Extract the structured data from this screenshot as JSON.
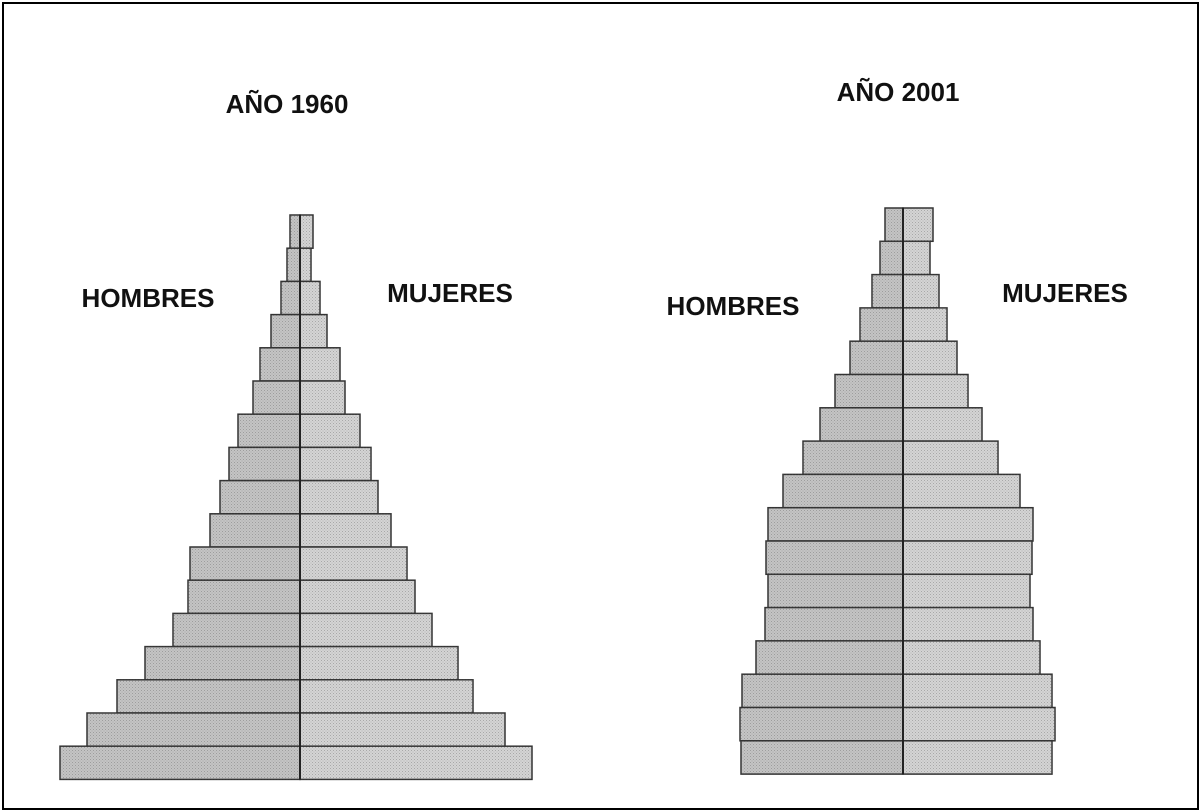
{
  "chart_data": [
    {
      "type": "pyramid",
      "title": "AÑO 1960",
      "series": [
        {
          "name": "HOMBRES",
          "color": "#c4c4c4",
          "values": [
            10,
            13,
            19,
            29,
            40,
            47,
            62,
            71,
            80,
            90,
            110,
            112,
            127,
            155,
            183,
            213,
            240
          ]
        },
        {
          "name": "MUJERES",
          "color": "#d4d4d4",
          "values": [
            13,
            11,
            20,
            27,
            40,
            45,
            60,
            71,
            78,
            91,
            107,
            115,
            132,
            158,
            173,
            205,
            232
          ]
        }
      ]
    },
    {
      "type": "pyramid",
      "title": "AÑO 2001",
      "series": [
        {
          "name": "HOMBRES",
          "color": "#c4c4c4",
          "values": [
            18,
            23,
            31,
            43,
            53,
            68,
            83,
            100,
            120,
            135,
            137,
            135,
            138,
            147,
            161,
            163,
            162
          ]
        },
        {
          "name": "MUJERES",
          "color": "#d4d4d4",
          "values": [
            30,
            27,
            36,
            44,
            54,
            65,
            79,
            95,
            117,
            130,
            129,
            127,
            130,
            137,
            149,
            152,
            149
          ]
        }
      ]
    }
  ]
}
